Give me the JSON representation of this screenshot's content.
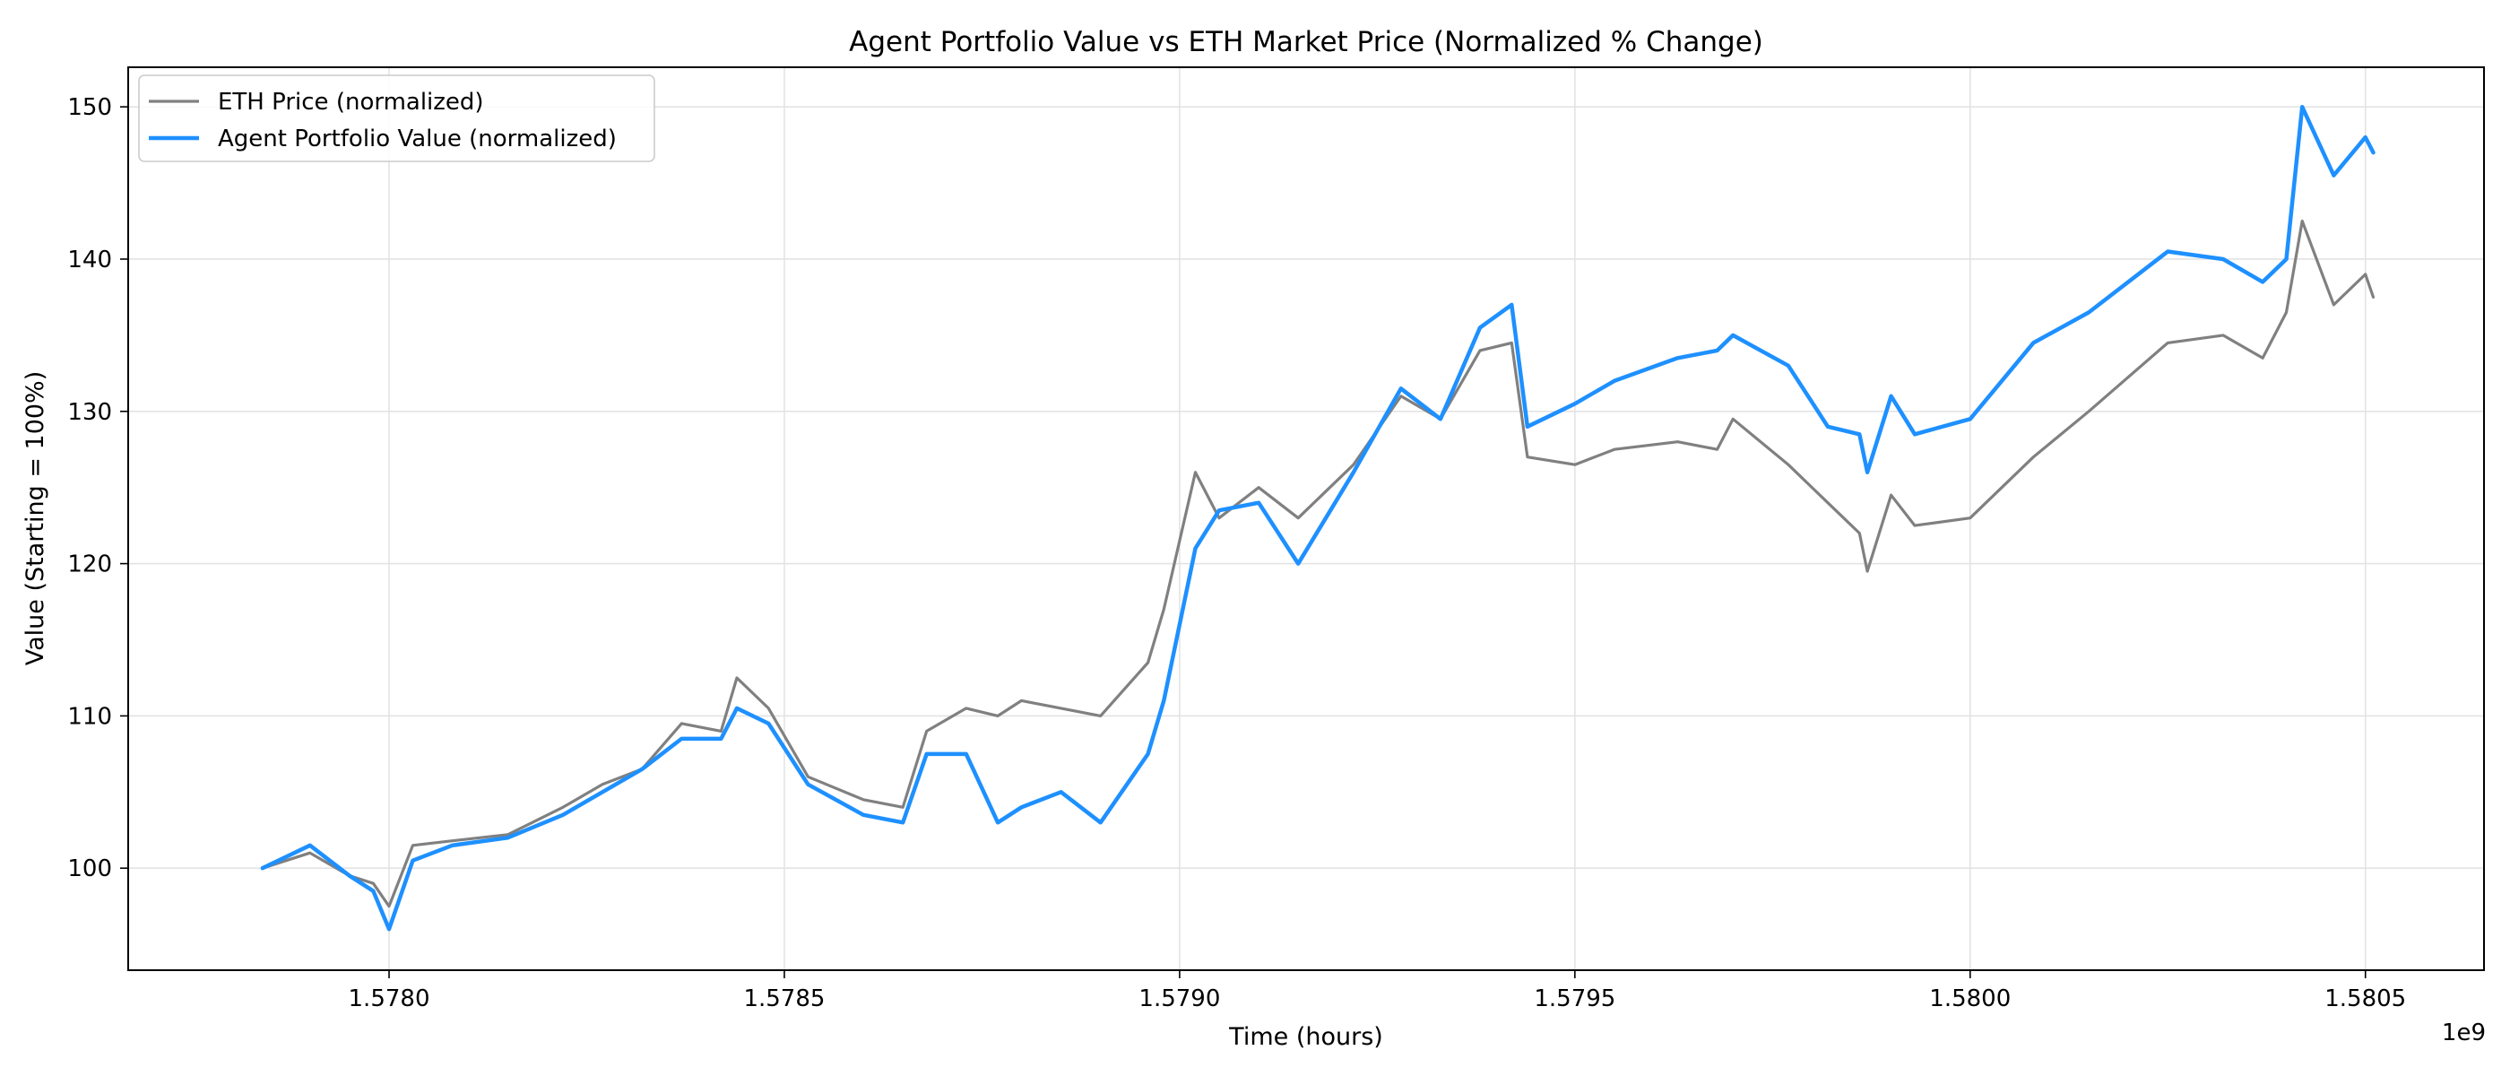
{
  "chart_data": {
    "type": "line",
    "title": "Agent Portfolio Value vs ETH Market Price (Normalized % Change)",
    "xlabel": "Time (hours)",
    "ylabel": "Value (Starting = 100%)",
    "x_offset_label": "1e9",
    "xlim": [
      1.57767,
      1.58065
    ],
    "ylim": [
      93.3,
      152.6
    ],
    "xticks": [
      1.578,
      1.5785,
      1.579,
      1.5795,
      1.58,
      1.5805
    ],
    "xtick_labels": [
      "1.5780",
      "1.5785",
      "1.5790",
      "1.5795",
      "1.5800",
      "1.5805"
    ],
    "yticks": [
      100,
      110,
      120,
      130,
      140,
      150
    ],
    "ytick_labels": [
      "100",
      "110",
      "120",
      "130",
      "140",
      "150"
    ],
    "grid": true,
    "legend_position": "upper-left",
    "series": [
      {
        "name": "ETH Price (normalized)",
        "color": "#808080",
        "points": [
          [
            1.57784,
            100.0
          ],
          [
            1.5779,
            101.0
          ],
          [
            1.57795,
            99.5
          ],
          [
            1.57798,
            99.0
          ],
          [
            1.578,
            97.5
          ],
          [
            1.57803,
            101.5
          ],
          [
            1.57808,
            101.8
          ],
          [
            1.57815,
            102.2
          ],
          [
            1.57822,
            104.0
          ],
          [
            1.57827,
            105.5
          ],
          [
            1.57832,
            106.5
          ],
          [
            1.57837,
            109.5
          ],
          [
            1.57842,
            109.0
          ],
          [
            1.57844,
            112.5
          ],
          [
            1.57848,
            110.5
          ],
          [
            1.57853,
            106.0
          ],
          [
            1.5786,
            104.5
          ],
          [
            1.57865,
            104.0
          ],
          [
            1.57868,
            109.0
          ],
          [
            1.57873,
            110.5
          ],
          [
            1.57877,
            110.0
          ],
          [
            1.5788,
            111.0
          ],
          [
            1.57885,
            110.5
          ],
          [
            1.5789,
            110.0
          ],
          [
            1.57896,
            113.5
          ],
          [
            1.57898,
            117.0
          ],
          [
            1.57902,
            126.0
          ],
          [
            1.57905,
            123.0
          ],
          [
            1.5791,
            125.0
          ],
          [
            1.57915,
            123.0
          ],
          [
            1.57922,
            126.5
          ],
          [
            1.57928,
            131.0
          ],
          [
            1.57933,
            129.5
          ],
          [
            1.57938,
            134.0
          ],
          [
            1.57942,
            134.5
          ],
          [
            1.57944,
            127.0
          ],
          [
            1.5795,
            126.5
          ],
          [
            1.57955,
            127.5
          ],
          [
            1.57963,
            128.0
          ],
          [
            1.57968,
            127.5
          ],
          [
            1.5797,
            129.5
          ],
          [
            1.57977,
            126.5
          ],
          [
            1.57982,
            124.0
          ],
          [
            1.57986,
            122.0
          ],
          [
            1.57987,
            119.5
          ],
          [
            1.5799,
            124.5
          ],
          [
            1.57993,
            122.5
          ],
          [
            1.58,
            123.0
          ],
          [
            1.58008,
            127.0
          ],
          [
            1.58015,
            130.0
          ],
          [
            1.58025,
            134.5
          ],
          [
            1.58032,
            135.0
          ],
          [
            1.58037,
            133.5
          ],
          [
            1.5804,
            136.5
          ],
          [
            1.58042,
            142.5
          ],
          [
            1.58046,
            137.0
          ],
          [
            1.5805,
            139.0
          ],
          [
            1.58051,
            137.5
          ]
        ]
      },
      {
        "name": "Agent Portfolio Value (normalized)",
        "color": "#1e90ff",
        "points": [
          [
            1.57784,
            100.0
          ],
          [
            1.5779,
            101.5
          ],
          [
            1.57795,
            99.5
          ],
          [
            1.57798,
            98.5
          ],
          [
            1.578,
            96.0
          ],
          [
            1.57803,
            100.5
          ],
          [
            1.57808,
            101.5
          ],
          [
            1.57815,
            102.0
          ],
          [
            1.57822,
            103.5
          ],
          [
            1.57827,
            105.0
          ],
          [
            1.57832,
            106.5
          ],
          [
            1.57837,
            108.5
          ],
          [
            1.57842,
            108.5
          ],
          [
            1.57844,
            110.5
          ],
          [
            1.57848,
            109.5
          ],
          [
            1.57853,
            105.5
          ],
          [
            1.5786,
            103.5
          ],
          [
            1.57865,
            103.0
          ],
          [
            1.57868,
            107.5
          ],
          [
            1.57873,
            107.5
          ],
          [
            1.57877,
            103.0
          ],
          [
            1.5788,
            104.0
          ],
          [
            1.57885,
            105.0
          ],
          [
            1.5789,
            103.0
          ],
          [
            1.57896,
            107.5
          ],
          [
            1.57898,
            111.0
          ],
          [
            1.57902,
            121.0
          ],
          [
            1.57905,
            123.5
          ],
          [
            1.5791,
            124.0
          ],
          [
            1.57915,
            120.0
          ],
          [
            1.57922,
            126.0
          ],
          [
            1.57928,
            131.5
          ],
          [
            1.57933,
            129.5
          ],
          [
            1.57938,
            135.5
          ],
          [
            1.57942,
            137.0
          ],
          [
            1.57944,
            129.0
          ],
          [
            1.5795,
            130.5
          ],
          [
            1.57955,
            132.0
          ],
          [
            1.57963,
            133.5
          ],
          [
            1.57968,
            134.0
          ],
          [
            1.5797,
            135.0
          ],
          [
            1.57977,
            133.0
          ],
          [
            1.57982,
            129.0
          ],
          [
            1.57986,
            128.5
          ],
          [
            1.57987,
            126.0
          ],
          [
            1.5799,
            131.0
          ],
          [
            1.57993,
            128.5
          ],
          [
            1.58,
            129.5
          ],
          [
            1.58008,
            134.5
          ],
          [
            1.58015,
            136.5
          ],
          [
            1.58025,
            140.5
          ],
          [
            1.58032,
            140.0
          ],
          [
            1.58037,
            138.5
          ],
          [
            1.5804,
            140.0
          ],
          [
            1.58042,
            150.0
          ],
          [
            1.58046,
            145.5
          ],
          [
            1.5805,
            148.0
          ],
          [
            1.58051,
            147.0
          ]
        ]
      }
    ]
  }
}
